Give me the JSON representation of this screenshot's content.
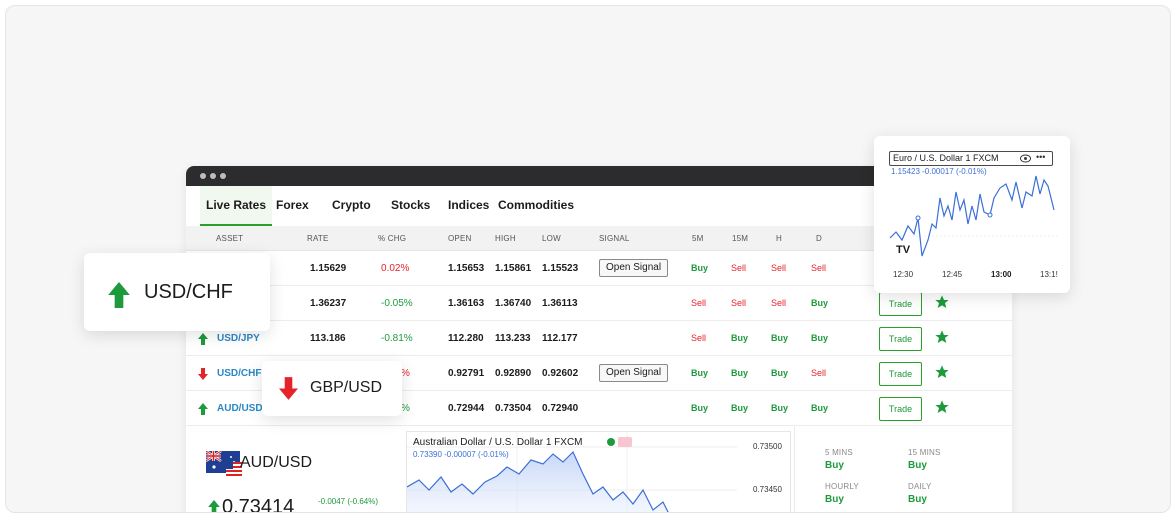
{
  "tabs": [
    "Live Rates",
    "Forex",
    "Crypto",
    "Stocks",
    "Indices",
    "Commodities"
  ],
  "headers": {
    "asset": "ASSET",
    "rate": "RATE",
    "chg": "% CHG",
    "open": "OPEN",
    "high": "HIGH",
    "low": "LOW",
    "signal": "SIGNAL",
    "m5": "5M",
    "m15": "15M",
    "h": "H",
    "d": "D"
  },
  "rows": [
    {
      "symbol": "",
      "rate": "1.15629",
      "chg": "0.02%",
      "open": "1.15653",
      "high": "1.15861",
      "low": "1.15523",
      "signal": "Open Signal",
      "m5": "Buy",
      "m15": "Sell",
      "h": "Sell",
      "d": "Sell",
      "trade": ""
    },
    {
      "symbol": "",
      "rate": "1.36237",
      "chg": "-0.05%",
      "open": "1.36163",
      "high": "1.36740",
      "low": "1.36113",
      "signal": "",
      "m5": "Sell",
      "m15": "Sell",
      "h": "Sell",
      "d": "Buy",
      "trade": "Trade"
    },
    {
      "symbol": "USD/JPY",
      "rate": "113.186",
      "chg": "-0.81%",
      "open": "112.280",
      "high": "113.233",
      "low": "112.177",
      "signal": "",
      "m5": "Sell",
      "m15": "Buy",
      "h": "Buy",
      "d": "Buy",
      "trade": "Trade"
    },
    {
      "symbol": "USD/CHF",
      "rate": "",
      "chg": "%",
      "open": "0.92791",
      "high": "0.92890",
      "low": "0.92602",
      "signal": "Open Signal",
      "m5": "Buy",
      "m15": "Buy",
      "h": "Buy",
      "d": "Sell",
      "trade": "Trade"
    },
    {
      "symbol": "AUD/USD",
      "rate": "",
      "chg": "%",
      "open": "0.72944",
      "high": "0.73504",
      "low": "0.72940",
      "signal": "",
      "m5": "Buy",
      "m15": "Buy",
      "h": "Buy",
      "d": "Buy",
      "trade": "Trade"
    }
  ],
  "float_chf": {
    "label": "USD/CHF"
  },
  "float_gbp": {
    "label": "GBP/USD"
  },
  "eur_chart": {
    "title": "Euro / U.S. Dollar  1  FXCM",
    "quote": "1.15423  -0.00017 (-0.01%)",
    "times": [
      "12:30",
      "12:45",
      "13:00",
      "13:1!"
    ],
    "logo": "TV"
  },
  "aud_panel": {
    "label": "AUD/USD",
    "rate": "0.73414",
    "change": "-0.0047 (-0.64%)"
  },
  "aud_chart": {
    "title": "Australian Dollar / U.S. Dollar  1  FXCM",
    "quote": "0.73390  -0.00007 (-0.01%)",
    "y_ticks": [
      "0.73500",
      "0.73450"
    ]
  },
  "signals_panel": {
    "m5_label": "5 MINS",
    "m5": "Buy",
    "m15_label": "15 MINS",
    "m15": "Buy",
    "hourly_label": "HOURLY",
    "hourly": "Buy",
    "daily_label": "DAILY",
    "daily": "Buy"
  },
  "colors": {
    "accent": "#2aa02a",
    "sell": "#e5232b",
    "link": "#2a87c7",
    "line": "#3b6fd8"
  }
}
